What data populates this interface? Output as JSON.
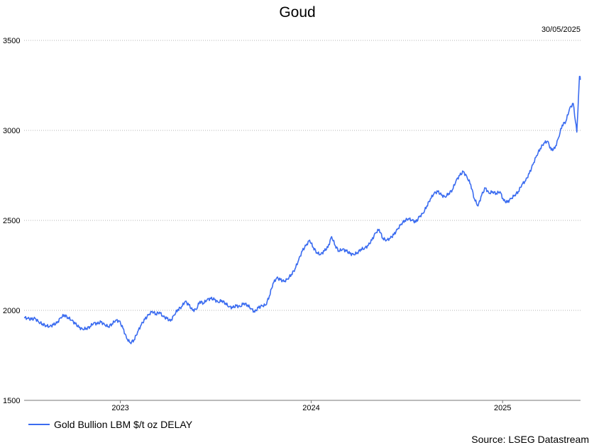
{
  "chart_data": {
    "type": "line",
    "title": "Goud",
    "date_label": "30/05/2025",
    "source": "Source: LSEG Datastream",
    "ylim": [
      1500,
      3500
    ],
    "yticks": [
      1500,
      2000,
      2500,
      3000,
      3500
    ],
    "xlim": [
      "2022-07-01",
      "2025-05-30"
    ],
    "xticks": [
      {
        "label": "2023",
        "date": "2023-01-01"
      },
      {
        "label": "2024",
        "date": "2024-01-01"
      },
      {
        "label": "2025",
        "date": "2025-01-01"
      }
    ],
    "grid": true,
    "legend_position": "bottom-left",
    "series": [
      {
        "name": "Gold Bullion LBM $/t oz DELAY",
        "color": "#3b6cf0",
        "points": [
          [
            "2022-07-01",
            1960
          ],
          [
            "2022-07-08",
            1955
          ],
          [
            "2022-07-15",
            1950
          ],
          [
            "2022-07-22",
            1955
          ],
          [
            "2022-07-29",
            1935
          ],
          [
            "2022-08-05",
            1925
          ],
          [
            "2022-08-12",
            1915
          ],
          [
            "2022-08-19",
            1910
          ],
          [
            "2022-08-26",
            1920
          ],
          [
            "2022-09-02",
            1930
          ],
          [
            "2022-09-09",
            1960
          ],
          [
            "2022-09-16",
            1975
          ],
          [
            "2022-09-23",
            1960
          ],
          [
            "2022-09-30",
            1945
          ],
          [
            "2022-10-07",
            1925
          ],
          [
            "2022-10-14",
            1905
          ],
          [
            "2022-10-21",
            1895
          ],
          [
            "2022-10-28",
            1900
          ],
          [
            "2022-11-04",
            1910
          ],
          [
            "2022-11-11",
            1930
          ],
          [
            "2022-11-18",
            1925
          ],
          [
            "2022-11-25",
            1935
          ],
          [
            "2022-12-02",
            1920
          ],
          [
            "2022-12-09",
            1910
          ],
          [
            "2022-12-16",
            1925
          ],
          [
            "2022-12-23",
            1945
          ],
          [
            "2022-12-30",
            1940
          ],
          [
            "2023-01-06",
            1900
          ],
          [
            "2023-01-13",
            1845
          ],
          [
            "2023-01-20",
            1820
          ],
          [
            "2023-01-27",
            1835
          ],
          [
            "2023-02-03",
            1880
          ],
          [
            "2023-02-10",
            1920
          ],
          [
            "2023-02-17",
            1950
          ],
          [
            "2023-02-24",
            1975
          ],
          [
            "2023-03-03",
            1995
          ],
          [
            "2023-03-10",
            1980
          ],
          [
            "2023-03-17",
            1990
          ],
          [
            "2023-03-24",
            1965
          ],
          [
            "2023-03-31",
            1955
          ],
          [
            "2023-04-07",
            1940
          ],
          [
            "2023-04-14",
            1975
          ],
          [
            "2023-04-21",
            2005
          ],
          [
            "2023-04-28",
            2020
          ],
          [
            "2023-05-05",
            2050
          ],
          [
            "2023-05-12",
            2030
          ],
          [
            "2023-05-19",
            2000
          ],
          [
            "2023-05-26",
            2005
          ],
          [
            "2023-06-02",
            2050
          ],
          [
            "2023-06-09",
            2040
          ],
          [
            "2023-06-16",
            2060
          ],
          [
            "2023-06-23",
            2065
          ],
          [
            "2023-06-30",
            2060
          ],
          [
            "2023-07-07",
            2045
          ],
          [
            "2023-07-14",
            2055
          ],
          [
            "2023-07-21",
            2040
          ],
          [
            "2023-07-28",
            2020
          ],
          [
            "2023-08-04",
            2015
          ],
          [
            "2023-08-11",
            2025
          ],
          [
            "2023-08-18",
            2020
          ],
          [
            "2023-08-25",
            2040
          ],
          [
            "2023-09-01",
            2030
          ],
          [
            "2023-09-08",
            2010
          ],
          [
            "2023-09-15",
            1990
          ],
          [
            "2023-09-22",
            2015
          ],
          [
            "2023-09-29",
            2025
          ],
          [
            "2023-10-06",
            2030
          ],
          [
            "2023-10-13",
            2080
          ],
          [
            "2023-10-20",
            2150
          ],
          [
            "2023-10-27",
            2180
          ],
          [
            "2023-11-03",
            2170
          ],
          [
            "2023-11-10",
            2160
          ],
          [
            "2023-11-17",
            2175
          ],
          [
            "2023-11-24",
            2200
          ],
          [
            "2023-12-01",
            2230
          ],
          [
            "2023-12-08",
            2280
          ],
          [
            "2023-12-15",
            2330
          ],
          [
            "2023-12-22",
            2360
          ],
          [
            "2023-12-29",
            2390
          ],
          [
            "2024-01-05",
            2350
          ],
          [
            "2024-01-12",
            2320
          ],
          [
            "2024-01-19",
            2310
          ],
          [
            "2024-01-26",
            2330
          ],
          [
            "2024-02-02",
            2350
          ],
          [
            "2024-02-09",
            2410
          ],
          [
            "2024-02-16",
            2360
          ],
          [
            "2024-02-23",
            2330
          ],
          [
            "2024-03-01",
            2340
          ],
          [
            "2024-03-08",
            2330
          ],
          [
            "2024-03-15",
            2315
          ],
          [
            "2024-03-22",
            2310
          ],
          [
            "2024-03-29",
            2320
          ],
          [
            "2024-04-05",
            2340
          ],
          [
            "2024-04-12",
            2345
          ],
          [
            "2024-04-19",
            2360
          ],
          [
            "2024-04-26",
            2390
          ],
          [
            "2024-05-03",
            2430
          ],
          [
            "2024-05-10",
            2450
          ],
          [
            "2024-05-17",
            2400
          ],
          [
            "2024-05-24",
            2390
          ],
          [
            "2024-05-31",
            2400
          ],
          [
            "2024-06-07",
            2420
          ],
          [
            "2024-06-14",
            2450
          ],
          [
            "2024-06-21",
            2480
          ],
          [
            "2024-06-28",
            2500
          ],
          [
            "2024-07-05",
            2510
          ],
          [
            "2024-07-12",
            2500
          ],
          [
            "2024-07-19",
            2490
          ],
          [
            "2024-07-26",
            2520
          ],
          [
            "2024-08-02",
            2540
          ],
          [
            "2024-08-09",
            2580
          ],
          [
            "2024-08-16",
            2620
          ],
          [
            "2024-08-23",
            2650
          ],
          [
            "2024-08-30",
            2660
          ],
          [
            "2024-09-06",
            2640
          ],
          [
            "2024-09-13",
            2630
          ],
          [
            "2024-09-20",
            2650
          ],
          [
            "2024-09-27",
            2670
          ],
          [
            "2024-10-04",
            2720
          ],
          [
            "2024-10-11",
            2750
          ],
          [
            "2024-10-18",
            2770
          ],
          [
            "2024-10-25",
            2740
          ],
          [
            "2024-11-01",
            2700
          ],
          [
            "2024-11-08",
            2620
          ],
          [
            "2024-11-15",
            2580
          ],
          [
            "2024-11-22",
            2640
          ],
          [
            "2024-11-29",
            2680
          ],
          [
            "2024-12-06",
            2650
          ],
          [
            "2024-12-13",
            2660
          ],
          [
            "2024-12-20",
            2650
          ],
          [
            "2024-12-27",
            2660
          ],
          [
            "2025-01-03",
            2610
          ],
          [
            "2025-01-10",
            2600
          ],
          [
            "2025-01-17",
            2620
          ],
          [
            "2025-01-24",
            2640
          ],
          [
            "2025-01-31",
            2660
          ],
          [
            "2025-02-07",
            2700
          ],
          [
            "2025-02-14",
            2720
          ],
          [
            "2025-02-21",
            2760
          ],
          [
            "2025-02-28",
            2810
          ],
          [
            "2025-03-07",
            2860
          ],
          [
            "2025-03-14",
            2900
          ],
          [
            "2025-03-21",
            2930
          ],
          [
            "2025-03-28",
            2940
          ],
          [
            "2025-04-04",
            2890
          ],
          [
            "2025-04-11",
            2900
          ],
          [
            "2025-04-18",
            2960
          ],
          [
            "2025-04-25",
            3030
          ],
          [
            "2025-05-02",
            3050
          ],
          [
            "2025-05-09",
            3120
          ],
          [
            "2025-05-16",
            3150
          ],
          [
            "2025-05-23",
            2990
          ],
          [
            "2025-05-28",
            3300
          ],
          [
            "2025-05-30",
            3285
          ]
        ]
      }
    ]
  }
}
